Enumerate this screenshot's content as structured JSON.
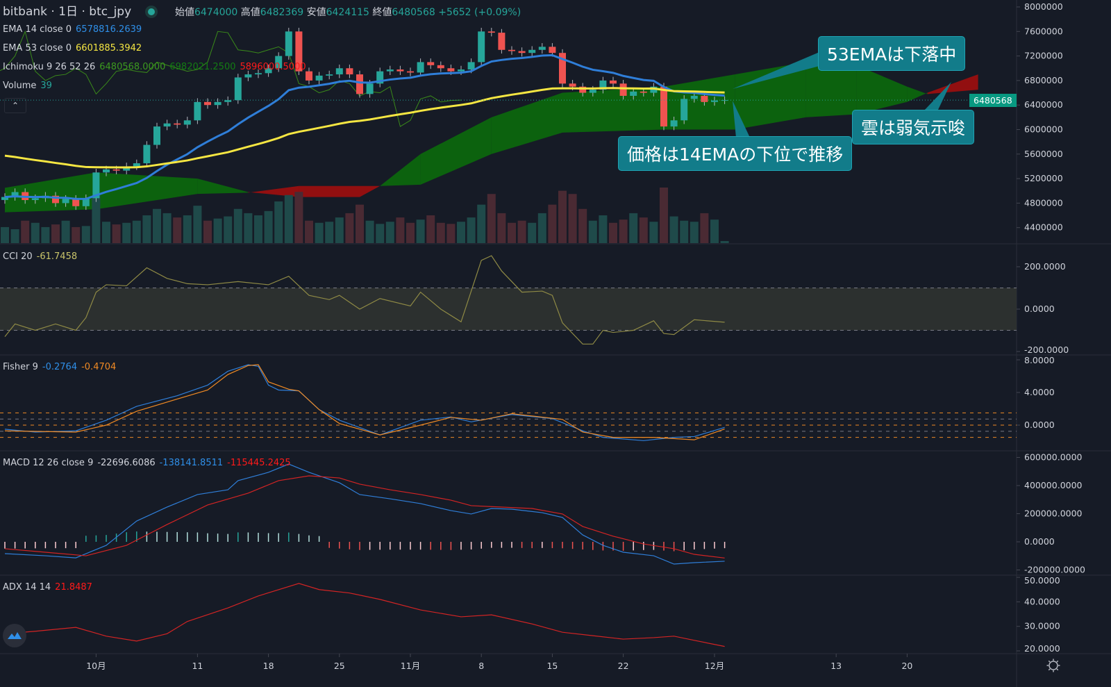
{
  "header": {
    "exchange": "bitbank",
    "interval": "1日",
    "symbol": "btc_jpy",
    "open_label": "始値",
    "open": "6474000",
    "high_label": "高値",
    "high": "6482369",
    "low_label": "安値",
    "low": "6424115",
    "close_label": "終値",
    "close": "6480568",
    "change": "+5652 (+0.09%)"
  },
  "legends": {
    "ema14": {
      "label": "EMA 14 close 0",
      "value": "6578816.2639"
    },
    "ema53": {
      "label": "EMA 53 close 0",
      "value": "6601885.3942"
    },
    "ichimoku": {
      "label": "Ichimoku 9 26 52 26",
      "v1": "6480568.0000",
      "v2": "6982021.2500",
      "v3": "5896000.5000"
    },
    "volume": {
      "label": "Volume",
      "value": "39"
    },
    "cci": {
      "label": "CCI 20",
      "value": "-61.7458"
    },
    "fisher": {
      "label": "Fisher 9",
      "v1": "-0.2764",
      "v2": "-0.4704"
    },
    "macd": {
      "label": "MACD 12 26 close 9",
      "v1": "-22696.6086",
      "v2": "-138141.8511",
      "v3": "-115445.2425"
    },
    "adx": {
      "label": "ADX 14 14",
      "value": "21.8487"
    }
  },
  "collapse_icon": "chevron-up-icon",
  "last_price_tag": "6480568",
  "annotations": [
    "53EMAは下落中",
    "雲は弱気示唆",
    "価格は14EMAの下位で推移"
  ],
  "colors": {
    "up": "#26a69a",
    "down": "#ef5350",
    "ema14": "#2f7ed8",
    "ema53": "#f5e642",
    "cloud_bull": "#0a6e0a",
    "cloud_bear": "#a80d0d",
    "cci": "#8f8a45",
    "fisher": "#2f7ed8",
    "trigger": "#f08a24",
    "macd": "#2f7ed8",
    "signal": "#d32424",
    "adx": "#d32424",
    "callout": "#127c8a"
  },
  "x_axis": {
    "labels": [
      "10月",
      "11",
      "18",
      "25",
      "11月",
      "8",
      "15",
      "22",
      "12月",
      "13",
      "20"
    ],
    "dates": [
      "10-01",
      "10-11",
      "10-18",
      "10-25",
      "11-01",
      "11-08",
      "11-15",
      "11-22",
      "12-01",
      "12-13",
      "12-20"
    ]
  },
  "chart_data": [
    {
      "type": "candlestick",
      "ylim": [
        4200000,
        8000000
      ],
      "y_ticks": [
        "8000000",
        "7600000",
        "7200000",
        "6800000",
        "6400000",
        "6000000",
        "5600000",
        "5200000",
        "4800000",
        "4400000"
      ],
      "start_date": "09-22",
      "close": [
        4900000,
        4980000,
        4850000,
        4880000,
        4920000,
        4800000,
        4870000,
        4750000,
        4880000,
        5300000,
        5350000,
        5330000,
        5400000,
        5450000,
        5750000,
        6050000,
        6100000,
        6080000,
        6150000,
        6450000,
        6400000,
        6450000,
        6480000,
        6850000,
        6900000,
        6920000,
        7000000,
        7200000,
        7600000,
        6950000,
        6800000,
        6880000,
        6900000,
        7000000,
        6900000,
        6580000,
        6750000,
        6950000,
        6980000,
        6950000,
        6930000,
        7100000,
        7050000,
        7000000,
        6950000,
        6980000,
        7100000,
        7600000,
        7580000,
        7300000,
        7280000,
        7250000,
        7300000,
        7350000,
        7250000,
        6750000,
        6700000,
        6600000,
        6650000,
        6800000,
        6750000,
        6550000,
        6620000,
        6600000,
        6700000,
        6050000,
        6150000,
        6500000,
        6550000,
        6450000,
        6475000,
        6480568
      ],
      "volume": [
        300,
        260,
        420,
        380,
        300,
        350,
        420,
        300,
        320,
        900,
        400,
        350,
        380,
        420,
        520,
        640,
        560,
        480,
        520,
        700,
        420,
        460,
        500,
        640,
        560,
        520,
        600,
        780,
        900,
        960,
        420,
        380,
        400,
        480,
        560,
        720,
        420,
        360,
        400,
        480,
        380,
        440,
        520,
        380,
        360,
        400,
        480,
        720,
        920,
        560,
        380,
        420,
        380,
        560,
        720,
        980,
        920,
        640,
        420,
        520,
        380,
        440,
        560,
        480,
        400,
        1040,
        500,
        420,
        400,
        560,
        440,
        39
      ],
      "ichimoku_cloud": [
        [
          "09-22",
          5050000,
          4650000
        ],
        [
          "10-01",
          5300000,
          4700000
        ],
        [
          "10-11",
          5200000,
          4950000
        ],
        [
          "10-16",
          4980000,
          4970000
        ],
        [
          "10-21",
          4900000,
          5080000
        ],
        [
          "10-27",
          4900000,
          5080000
        ],
        [
          "10-29",
          5080000,
          5080000
        ],
        [
          "11-02",
          5600000,
          5100000
        ],
        [
          "11-09",
          6200000,
          5600000
        ],
        [
          "11-16",
          6600000,
          5950000
        ],
        [
          "11-26",
          6700000,
          6000000
        ],
        [
          "12-03",
          6900000,
          6000000
        ],
        [
          "12-10",
          7100000,
          6200000
        ],
        [
          "12-15",
          7050000,
          6250000
        ],
        [
          "12-20",
          6700000,
          6450000
        ],
        [
          "12-22",
          6580000,
          6600000
        ],
        [
          "12-27",
          6650000,
          6900000
        ]
      ]
    },
    {
      "type": "line",
      "name": "CCI 20",
      "ylim": [
        -200,
        200
      ],
      "y_ticks": [
        "200.0000",
        "0.0000",
        "-200.0000"
      ],
      "bands": [
        100,
        -100
      ],
      "points": [
        [
          "09-22",
          -130
        ],
        [
          "09-23",
          -70
        ],
        [
          "09-25",
          -100
        ],
        [
          "09-27",
          -70
        ],
        [
          "09-29",
          -100
        ],
        [
          "09-30",
          -40
        ],
        [
          "10-01",
          80
        ],
        [
          "10-02",
          115
        ],
        [
          "10-04",
          110
        ],
        [
          "10-06",
          195
        ],
        [
          "10-08",
          145
        ],
        [
          "10-10",
          120
        ],
        [
          "10-12",
          115
        ],
        [
          "10-15",
          130
        ],
        [
          "10-18",
          115
        ],
        [
          "10-20",
          155
        ],
        [
          "10-22",
          65
        ],
        [
          "10-24",
          45
        ],
        [
          "10-25",
          65
        ],
        [
          "10-27",
          0
        ],
        [
          "10-29",
          50
        ],
        [
          "11-01",
          15
        ],
        [
          "11-02",
          80
        ],
        [
          "11-04",
          0
        ],
        [
          "11-06",
          -60
        ],
        [
          "11-08",
          230
        ],
        [
          "11-09",
          252
        ],
        [
          "11-10",
          180
        ],
        [
          "11-12",
          80
        ],
        [
          "11-14",
          85
        ],
        [
          "11-15",
          65
        ],
        [
          "11-16",
          -65
        ],
        [
          "11-18",
          -165
        ],
        [
          "11-19",
          -165
        ],
        [
          "11-20",
          -100
        ],
        [
          "11-21",
          -110
        ],
        [
          "11-23",
          -100
        ],
        [
          "11-25",
          -55
        ],
        [
          "11-26",
          -115
        ],
        [
          "11-27",
          -120
        ],
        [
          "11-29",
          -50
        ],
        [
          "12-02",
          -62
        ]
      ]
    },
    {
      "type": "line",
      "name": "Fisher 9",
      "ylim": [
        -2,
        8
      ],
      "y_ticks": [
        "8.0000",
        "4.0000",
        "0.0000"
      ],
      "levels": [
        1.5,
        0.75,
        0,
        -0.75,
        -1.5
      ],
      "fisher": [
        [
          "09-22",
          -0.5
        ],
        [
          "09-25",
          -0.85
        ],
        [
          "09-29",
          -0.7
        ],
        [
          "10-02",
          0.6
        ],
        [
          "10-05",
          2.3
        ],
        [
          "10-09",
          3.6
        ],
        [
          "10-12",
          4.9
        ],
        [
          "10-14",
          6.6
        ],
        [
          "10-16",
          7.4
        ],
        [
          "10-17",
          7.2
        ],
        [
          "10-18",
          4.9
        ],
        [
          "10-19",
          4.3
        ],
        [
          "10-21",
          4.2
        ],
        [
          "10-23",
          1.9
        ],
        [
          "10-25",
          0.6
        ],
        [
          "10-29",
          -1.2
        ],
        [
          "11-02",
          0.6
        ],
        [
          "11-05",
          1.0
        ],
        [
          "11-07",
          0.4
        ],
        [
          "11-11",
          1.3
        ],
        [
          "11-15",
          0.8
        ],
        [
          "11-18",
          -0.7
        ],
        [
          "11-20",
          -1.5
        ],
        [
          "11-24",
          -1.9
        ],
        [
          "11-27",
          -1.5
        ],
        [
          "11-29",
          -1.4
        ],
        [
          "12-02",
          -0.28
        ]
      ],
      "trigger": [
        [
          "09-22",
          -0.7
        ],
        [
          "09-29",
          -0.85
        ],
        [
          "10-02",
          0.0
        ],
        [
          "10-05",
          1.7
        ],
        [
          "10-09",
          3.2
        ],
        [
          "10-12",
          4.3
        ],
        [
          "10-14",
          6.2
        ],
        [
          "10-16",
          7.3
        ],
        [
          "10-17",
          7.4
        ],
        [
          "10-18",
          5.3
        ],
        [
          "10-20",
          4.4
        ],
        [
          "10-21",
          4.2
        ],
        [
          "10-23",
          1.9
        ],
        [
          "10-25",
          0.2
        ],
        [
          "10-29",
          -1.2
        ],
        [
          "11-02",
          0.0
        ],
        [
          "11-05",
          0.95
        ],
        [
          "11-08",
          0.6
        ],
        [
          "11-11",
          1.4
        ],
        [
          "11-16",
          0.7
        ],
        [
          "11-18",
          -0.85
        ],
        [
          "11-21",
          -1.5
        ],
        [
          "11-25",
          -1.5
        ],
        [
          "11-29",
          -1.8
        ],
        [
          "12-02",
          -0.47
        ]
      ]
    },
    {
      "type": "line",
      "name": "MACD 12 26 close 9",
      "ylim": [
        -200000,
        600000
      ],
      "y_ticks": [
        "600000.0000",
        "400000.0000",
        "200000.0000",
        "0.0000",
        "-200000.0000"
      ],
      "macd": [
        [
          "09-22",
          -84000
        ],
        [
          "09-26",
          -99000
        ],
        [
          "09-29",
          -114000
        ],
        [
          "10-02",
          -25000
        ],
        [
          "10-05",
          148000
        ],
        [
          "10-08",
          247000
        ],
        [
          "10-11",
          336000
        ],
        [
          "10-14",
          370000
        ],
        [
          "10-15",
          435000
        ],
        [
          "10-18",
          494000
        ],
        [
          "10-20",
          553000
        ],
        [
          "10-22",
          494000
        ],
        [
          "10-25",
          420000
        ],
        [
          "10-27",
          336000
        ],
        [
          "10-30",
          306000
        ],
        [
          "11-02",
          272000
        ],
        [
          "11-05",
          222000
        ],
        [
          "11-07",
          198000
        ],
        [
          "11-09",
          237000
        ],
        [
          "11-11",
          232000
        ],
        [
          "11-14",
          207000
        ],
        [
          "11-16",
          173000
        ],
        [
          "11-18",
          49000
        ],
        [
          "11-20",
          -25000
        ],
        [
          "11-22",
          -74000
        ],
        [
          "11-25",
          -99000
        ],
        [
          "11-27",
          -158000
        ],
        [
          "11-29",
          -148000
        ],
        [
          "12-02",
          -138000
        ]
      ],
      "signal": [
        [
          "09-22",
          -49000
        ],
        [
          "09-26",
          -74000
        ],
        [
          "09-30",
          -99000
        ],
        [
          "10-04",
          -25000
        ],
        [
          "10-08",
          123000
        ],
        [
          "10-12",
          262000
        ],
        [
          "10-16",
          346000
        ],
        [
          "10-19",
          435000
        ],
        [
          "10-22",
          469000
        ],
        [
          "10-25",
          454000
        ],
        [
          "10-27",
          410000
        ],
        [
          "10-30",
          370000
        ],
        [
          "11-02",
          336000
        ],
        [
          "11-05",
          296000
        ],
        [
          "11-07",
          257000
        ],
        [
          "11-10",
          247000
        ],
        [
          "11-13",
          237000
        ],
        [
          "11-16",
          198000
        ],
        [
          "11-18",
          109000
        ],
        [
          "11-21",
          40000
        ],
        [
          "11-24",
          -15000
        ],
        [
          "11-27",
          -49000
        ],
        [
          "11-29",
          -89000
        ],
        [
          "12-02",
          -115000
        ]
      ]
    },
    {
      "type": "line",
      "name": "ADX 14 14",
      "ylim": [
        20,
        50
      ],
      "y_ticks": [
        "50.0000",
        "40.0000",
        "30.0000",
        "20.0000"
      ],
      "points": [
        [
          "09-22",
          27
        ],
        [
          "09-25",
          28
        ],
        [
          "09-29",
          29.6
        ],
        [
          "10-02",
          26
        ],
        [
          "10-05",
          24
        ],
        [
          "10-08",
          27
        ],
        [
          "10-10",
          32
        ],
        [
          "10-14",
          37.5
        ],
        [
          "10-17",
          42.4
        ],
        [
          "10-21",
          47.5
        ],
        [
          "10-23",
          45
        ],
        [
          "10-26",
          43.6
        ],
        [
          "10-29",
          41
        ],
        [
          "11-02",
          36.7
        ],
        [
          "11-06",
          33.9
        ],
        [
          "11-09",
          34.7
        ],
        [
          "11-13",
          31
        ],
        [
          "11-16",
          27.6
        ],
        [
          "11-19",
          26.2
        ],
        [
          "11-22",
          24.8
        ],
        [
          "11-25",
          25.4
        ],
        [
          "11-27",
          26
        ],
        [
          "11-29",
          24.3
        ],
        [
          "12-02",
          21.8
        ]
      ]
    }
  ]
}
